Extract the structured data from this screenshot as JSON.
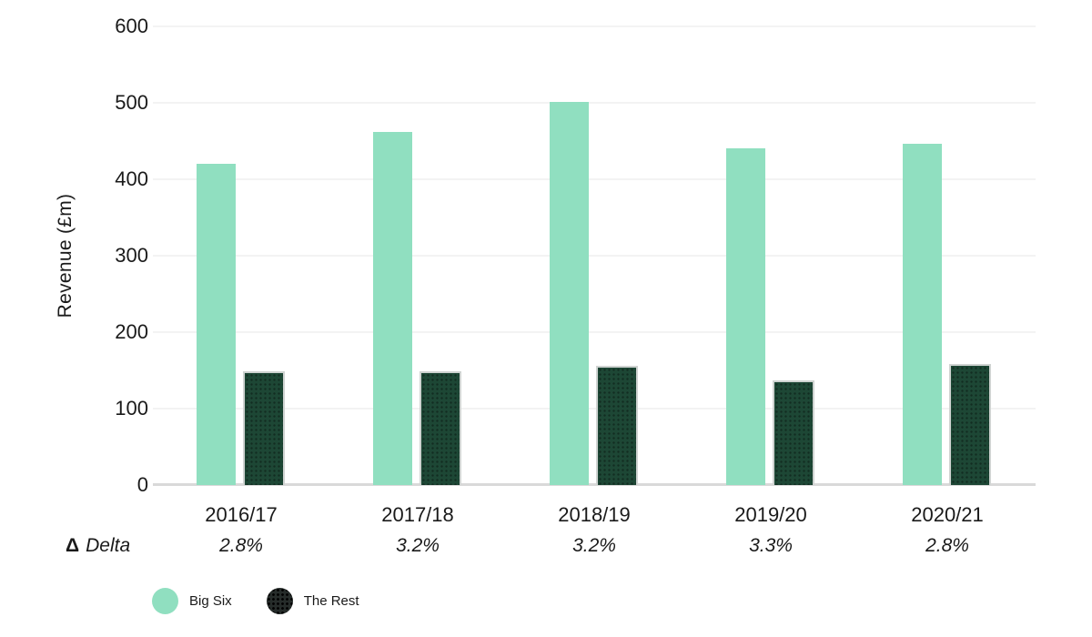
{
  "chart_data": {
    "type": "bar",
    "categories": [
      "2016/17",
      "2017/18",
      "2018/19",
      "2019/20",
      "2020/21"
    ],
    "series": [
      {
        "name": "Big Six",
        "color": "#90dfc0",
        "legend_color": "#90dfc0",
        "values": [
          420,
          462,
          501,
          440,
          446
        ]
      },
      {
        "name": "The Rest",
        "color": "#1d4735",
        "legend_color": "#262c2a",
        "values": [
          146,
          146,
          153,
          134,
          156
        ]
      }
    ],
    "title": "",
    "xlabel": "",
    "ylabel": "Revenue (£m)",
    "ylim": [
      0,
      600
    ],
    "y_ticks": [
      "600",
      "500",
      "400",
      "300",
      "200",
      "100",
      "0"
    ],
    "grid": true,
    "legend_position": "bottom",
    "delta_row": {
      "symbol": "Δ",
      "label": "Delta",
      "values": [
        "2.8%",
        "3.2%",
        "3.2%",
        "3.3%",
        "2.8%"
      ]
    },
    "colors": {
      "gridline": "#f3f3f3",
      "baseline": "#d9d9d9",
      "text": "#1a1a1a",
      "rest_bar_stroke": "#cfd3d1"
    }
  }
}
